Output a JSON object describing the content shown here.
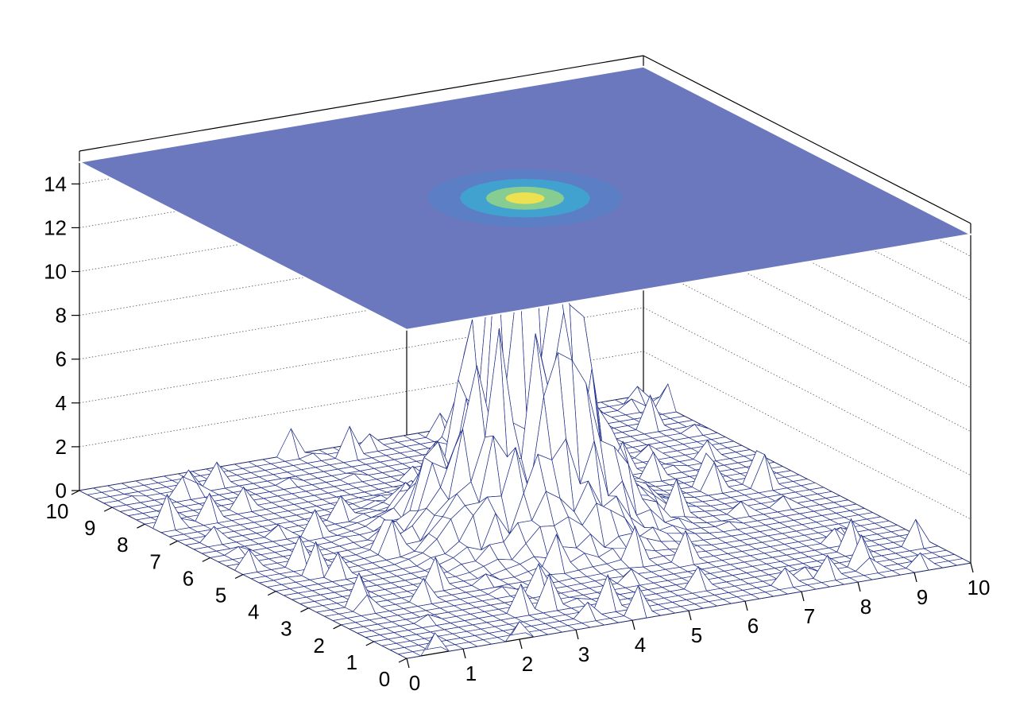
{
  "chart_data": {
    "type": "surface",
    "title": "",
    "xlabel": "",
    "ylabel": "",
    "zlabel": "",
    "xlim": [
      0,
      10
    ],
    "ylim": [
      0,
      10
    ],
    "zlim": [
      0,
      15.5
    ],
    "x_ticks": [
      "0",
      "1",
      "2",
      "3",
      "4",
      "5",
      "6",
      "7",
      "8",
      "9",
      "10"
    ],
    "y_ticks": [
      "0",
      "1",
      "2",
      "3",
      "4",
      "5",
      "6",
      "7",
      "8",
      "9",
      "10"
    ],
    "z_ticks": [
      "0",
      "2",
      "4",
      "6",
      "8",
      "10",
      "12",
      "14"
    ],
    "grid": true,
    "surface": {
      "description_values": "2D histogram of a Gaussian peak centered near (5,5)",
      "center": [
        5,
        5
      ],
      "peak_height": 15,
      "mesh_bins": 40
    },
    "top_projection": {
      "z": 15,
      "fill_color": "#6b78bd",
      "hotspot_colors": [
        "#f8e34a",
        "#8fd18a",
        "#3fa6cf",
        "#5b7ec5"
      ]
    },
    "colors": {
      "mesh": "#1f2e8a",
      "axes": "#000000",
      "grid": "#555555"
    }
  }
}
